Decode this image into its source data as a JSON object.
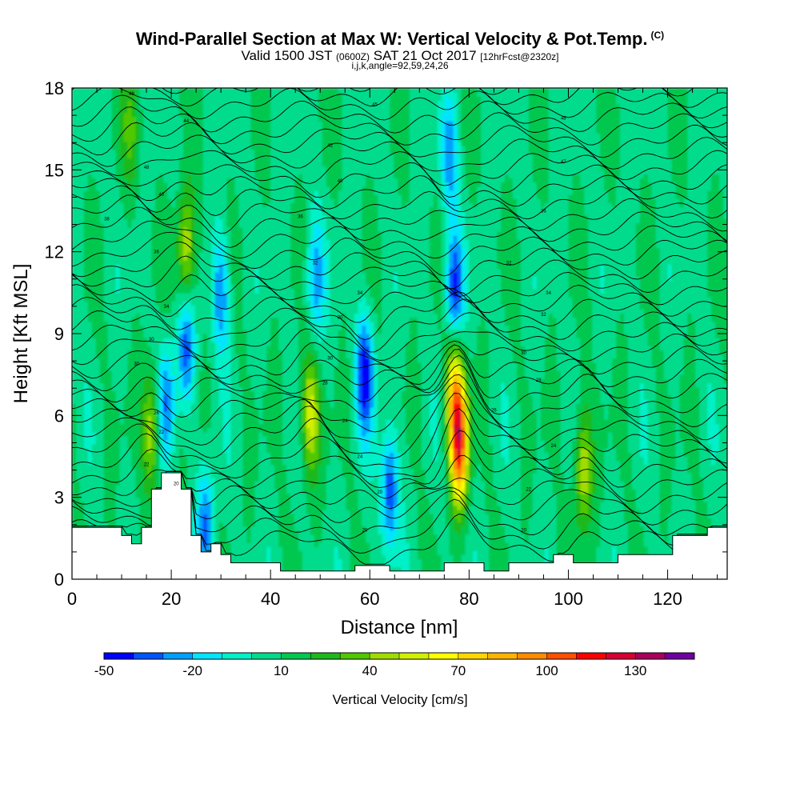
{
  "header": {
    "title": "Wind-Parallel Section at Max W: Vertical Velocity & Pot.Temp.",
    "copyright": "(C)",
    "valid_prefix": "Valid 1500 JST",
    "valid_utc": "(0600Z)",
    "valid_date": "SAT 21 Oct 2017",
    "forecast": "[12hrFcst@2320z]",
    "indices": "i,j,k,angle=92,59,24,26"
  },
  "chart_data": {
    "type": "heatmap",
    "xlabel": "Distance [nm]",
    "ylabel": "Height [Kft MSL]",
    "xlim": [
      0,
      132
    ],
    "ylim": [
      0,
      18
    ],
    "x_ticks": [
      "0",
      "20",
      "40",
      "60",
      "80",
      "100",
      "120"
    ],
    "y_ticks": [
      "0",
      "3",
      "6",
      "9",
      "12",
      "15",
      "18"
    ],
    "colorbar": {
      "title": "Vertical Velocity [cm/s]",
      "tick_labels": [
        "-50",
        "-20",
        "10",
        "40",
        "70",
        "100",
        "130"
      ],
      "tick_values": [
        -50,
        -20,
        10,
        40,
        70,
        100,
        130
      ],
      "min": -50,
      "max": 150,
      "step": 10,
      "colors": [
        "#0000ff",
        "#0055ff",
        "#00a0ff",
        "#00e5ff",
        "#00f0c8",
        "#00dc8c",
        "#00c850",
        "#1eb91e",
        "#50c800",
        "#a0dc00",
        "#d2f000",
        "#ffff00",
        "#ffd700",
        "#ffb400",
        "#ff8c00",
        "#ff5000",
        "#ff0000",
        "#d70032",
        "#aa005a",
        "#6e00a0"
      ]
    },
    "terrain_height_kft": [
      [
        0,
        1.9
      ],
      [
        5,
        1.9
      ],
      [
        10,
        1.6
      ],
      [
        12,
        1.3
      ],
      [
        14,
        1.9
      ],
      [
        16,
        3.3
      ],
      [
        18,
        3.9
      ],
      [
        20,
        3.9
      ],
      [
        22,
        3.3
      ],
      [
        24,
        1.6
      ],
      [
        26,
        1.0
      ],
      [
        28,
        1.3
      ],
      [
        30,
        0.9
      ],
      [
        32,
        0.6
      ],
      [
        40,
        0.6
      ],
      [
        42,
        0.3
      ],
      [
        55,
        0.3
      ],
      [
        57,
        0.5
      ],
      [
        60,
        0.5
      ],
      [
        64,
        0.3
      ],
      [
        70,
        0.3
      ],
      [
        75,
        0.6
      ],
      [
        80,
        0.6
      ],
      [
        83,
        0.3
      ],
      [
        88,
        0.6
      ],
      [
        96,
        0.6
      ],
      [
        97,
        0.9
      ],
      [
        100,
        0.9
      ],
      [
        101,
        0.6
      ],
      [
        110,
        0.9
      ],
      [
        120,
        0.9
      ],
      [
        121,
        1.6
      ],
      [
        126,
        1.6
      ],
      [
        128,
        1.9
      ],
      [
        132,
        1.9
      ]
    ],
    "vertical_velocity_features_cm_s": [
      {
        "x_nm": 78,
        "y_kft": 5.0,
        "w": 110
      },
      {
        "x_nm": 77,
        "y_kft": 7.2,
        "w": 60
      },
      {
        "x_nm": 48,
        "y_kft": 6.0,
        "w": 55
      },
      {
        "x_nm": 23,
        "y_kft": 12.0,
        "w": 55
      },
      {
        "x_nm": 16,
        "y_kft": 5.5,
        "w": 50
      },
      {
        "x_nm": 103,
        "y_kft": 4.0,
        "w": 50
      },
      {
        "x_nm": 12,
        "y_kft": 16.5,
        "w": 30
      },
      {
        "x_nm": 77,
        "y_kft": 10.5,
        "w": -45
      },
      {
        "x_nm": 59,
        "y_kft": 7.5,
        "w": -45
      },
      {
        "x_nm": 64,
        "y_kft": 3.3,
        "w": -40
      },
      {
        "x_nm": 23,
        "y_kft": 8.5,
        "w": -35
      },
      {
        "x_nm": 19,
        "y_kft": 6.5,
        "w": -30
      },
      {
        "x_nm": 30,
        "y_kft": 10.5,
        "w": -30
      },
      {
        "x_nm": 49,
        "y_kft": 11.0,
        "w": -25
      },
      {
        "x_nm": 76,
        "y_kft": 15.5,
        "w": -25
      },
      {
        "x_nm": 27,
        "y_kft": 2.0,
        "w": -30
      }
    ],
    "potential_temperature_contour_labels": [
      {
        "x_nm": 12,
        "y_kft": 17.8,
        "text": "48"
      },
      {
        "x_nm": 23,
        "y_kft": 16.8,
        "text": "44"
      },
      {
        "x_nm": 61,
        "y_kft": 17.4,
        "text": "45"
      },
      {
        "x_nm": 99,
        "y_kft": 16.9,
        "text": "48"
      },
      {
        "x_nm": 52,
        "y_kft": 15.9,
        "text": "42"
      },
      {
        "x_nm": 99,
        "y_kft": 15.3,
        "text": "47"
      },
      {
        "x_nm": 15,
        "y_kft": 15.1,
        "text": "48"
      },
      {
        "x_nm": 54,
        "y_kft": 14.6,
        "text": "40"
      },
      {
        "x_nm": 18,
        "y_kft": 14.1,
        "text": "40"
      },
      {
        "x_nm": 95,
        "y_kft": 13.5,
        "text": "36"
      },
      {
        "x_nm": 7,
        "y_kft": 13.2,
        "text": "38"
      },
      {
        "x_nm": 46,
        "y_kft": 13.3,
        "text": "36"
      },
      {
        "x_nm": 17,
        "y_kft": 12.0,
        "text": "36"
      },
      {
        "x_nm": 88,
        "y_kft": 11.6,
        "text": "32"
      },
      {
        "x_nm": 49,
        "y_kft": 11.6,
        "text": "32"
      },
      {
        "x_nm": 58,
        "y_kft": 10.5,
        "text": "34"
      },
      {
        "x_nm": 96,
        "y_kft": 10.5,
        "text": "34"
      },
      {
        "x_nm": 19,
        "y_kft": 10.0,
        "text": "34"
      },
      {
        "x_nm": 95,
        "y_kft": 9.7,
        "text": "32"
      },
      {
        "x_nm": 54,
        "y_kft": 9.6,
        "text": "30"
      },
      {
        "x_nm": 16,
        "y_kft": 8.8,
        "text": "30"
      },
      {
        "x_nm": 91,
        "y_kft": 8.3,
        "text": "30"
      },
      {
        "x_nm": 52,
        "y_kft": 8.1,
        "text": "30"
      },
      {
        "x_nm": 13,
        "y_kft": 7.9,
        "text": "30"
      },
      {
        "x_nm": 94,
        "y_kft": 7.3,
        "text": "28"
      },
      {
        "x_nm": 51,
        "y_kft": 7.2,
        "text": "26"
      },
      {
        "x_nm": 85,
        "y_kft": 6.2,
        "text": "26"
      },
      {
        "x_nm": 17,
        "y_kft": 6.1,
        "text": "26"
      },
      {
        "x_nm": 55,
        "y_kft": 5.8,
        "text": "24"
      },
      {
        "x_nm": 18,
        "y_kft": 5.4,
        "text": "22"
      },
      {
        "x_nm": 97,
        "y_kft": 4.9,
        "text": "24"
      },
      {
        "x_nm": 58,
        "y_kft": 4.5,
        "text": "24"
      },
      {
        "x_nm": 15,
        "y_kft": 4.2,
        "text": "22"
      },
      {
        "x_nm": 92,
        "y_kft": 3.3,
        "text": "22"
      },
      {
        "x_nm": 21,
        "y_kft": 3.5,
        "text": "20"
      },
      {
        "x_nm": 62,
        "y_kft": 3.2,
        "text": "20"
      },
      {
        "x_nm": 59,
        "y_kft": 1.8,
        "text": "20"
      },
      {
        "x_nm": 91,
        "y_kft": 1.8,
        "text": "20"
      }
    ]
  }
}
